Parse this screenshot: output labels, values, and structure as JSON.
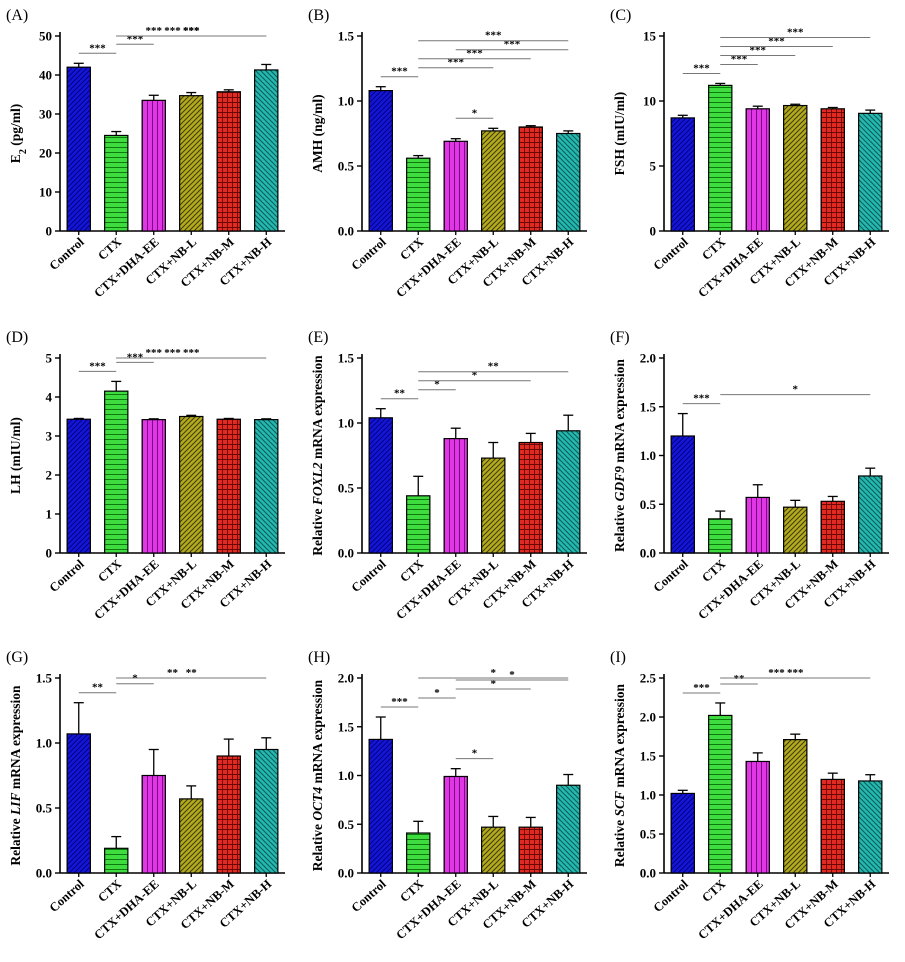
{
  "colors": {
    "bars": [
      "#1515d6",
      "#3fdc3f",
      "#e036e6",
      "#b3aa1e",
      "#e02a22",
      "#23b8b0"
    ],
    "axis": "#000000",
    "sigline": "#777777"
  },
  "chart_data": [
    {
      "id": "A",
      "panel_label": "(A)",
      "type": "bar",
      "ylabel": [
        "E",
        "2",
        " (pg/ml)"
      ],
      "categories": [
        "Control",
        "CTX",
        "CTX+DHA-EE",
        "CTX+NB-L",
        "CTX+NB-M",
        "CTX+NB-H"
      ],
      "values": [
        42,
        24.5,
        33.5,
        34.7,
        35.7,
        41.3
      ],
      "errors": [
        1.0,
        1.0,
        1.3,
        0.8,
        0.5,
        1.4
      ],
      "ylim": [
        0,
        50
      ],
      "ytick_labels": [
        "0",
        "10",
        "20",
        "30",
        "40",
        "50"
      ],
      "significance": [
        {
          "from": 0,
          "to": 1,
          "label": "***"
        },
        {
          "from": 1,
          "to": 2,
          "label": "***"
        },
        {
          "from": 1,
          "to": 3,
          "label": "***"
        },
        {
          "from": 1,
          "to": 4,
          "label": "***"
        },
        {
          "from": 1,
          "to": 5,
          "label": "***"
        },
        {
          "from": 1,
          "to": 5,
          "label": "***"
        }
      ]
    },
    {
      "id": "B",
      "panel_label": "(B)",
      "type": "bar",
      "ylabel": [
        "AMH (ng/ml)"
      ],
      "categories": [
        "Control",
        "CTX",
        "CTX+DHA-EE",
        "CTX+NB-L",
        "CTX+NB-M",
        "CTX+NB-H"
      ],
      "values": [
        1.08,
        0.56,
        0.69,
        0.77,
        0.8,
        0.75
      ],
      "errors": [
        0.03,
        0.02,
        0.02,
        0.02,
        0.01,
        0.02
      ],
      "ylim": [
        0,
        1.5
      ],
      "ytick_labels": [
        "0.0",
        "0.5",
        "1.0",
        "1.5"
      ],
      "significance": [
        {
          "from": 0,
          "to": 1,
          "label": "***"
        },
        {
          "from": 2,
          "to": 3,
          "label": "*"
        },
        {
          "from": 1,
          "to": 3,
          "label": "***"
        },
        {
          "from": 1,
          "to": 4,
          "label": "***"
        },
        {
          "from": 1,
          "to": 5,
          "label": "***"
        },
        {
          "from": 2,
          "to": 5,
          "label": "***"
        }
      ]
    },
    {
      "id": "C",
      "panel_label": "(C)",
      "type": "bar",
      "ylabel": [
        "FSH (mIU/ml)"
      ],
      "categories": [
        "Control",
        "CTX",
        "CTX+DHA-EE",
        "CTX+NB-L",
        "CTX+NB-M",
        "CTX+NB-H"
      ],
      "values": [
        8.7,
        11.2,
        9.4,
        9.65,
        9.4,
        9.05
      ],
      "errors": [
        0.2,
        0.15,
        0.2,
        0.1,
        0.1,
        0.25
      ],
      "ylim": [
        0,
        15
      ],
      "ytick_labels": [
        "0",
        "5",
        "10",
        "15"
      ],
      "significance": [
        {
          "from": 0,
          "to": 1,
          "label": "***"
        },
        {
          "from": 1,
          "to": 2,
          "label": "***"
        },
        {
          "from": 1,
          "to": 3,
          "label": "***"
        },
        {
          "from": 1,
          "to": 4,
          "label": "***"
        },
        {
          "from": 1,
          "to": 5,
          "label": "***"
        }
      ]
    },
    {
      "id": "D",
      "panel_label": "(D)",
      "type": "bar",
      "ylabel": [
        "LH (mIU/ml)"
      ],
      "categories": [
        "Control",
        "CTX",
        "CTX+DHA-EE",
        "CTX+NB-L",
        "CTX+NB-M",
        "CTX+NB-H"
      ],
      "values": [
        3.43,
        4.15,
        3.42,
        3.5,
        3.43,
        3.42
      ],
      "errors": [
        0.02,
        0.25,
        0.02,
        0.03,
        0.02,
        0.02
      ],
      "ylim": [
        0,
        5
      ],
      "ytick_labels": [
        "0",
        "1",
        "2",
        "3",
        "4",
        "5"
      ],
      "significance": [
        {
          "from": 0,
          "to": 1,
          "label": "***"
        },
        {
          "from": 1,
          "to": 2,
          "label": "***"
        },
        {
          "from": 1,
          "to": 3,
          "label": "***"
        },
        {
          "from": 1,
          "to": 4,
          "label": "***"
        },
        {
          "from": 1,
          "to": 5,
          "label": "***"
        }
      ]
    },
    {
      "id": "E",
      "panel_label": "(E)",
      "type": "bar",
      "ylabel": [
        "Relative ",
        "FOXL2",
        " mRNA expression"
      ],
      "categories": [
        "Control",
        "CTX",
        "CTX+DHA-EE",
        "CTX+NB-L",
        "CTX+NB-M",
        "CTX+NB-H"
      ],
      "values": [
        1.04,
        0.44,
        0.88,
        0.73,
        0.85,
        0.94
      ],
      "errors": [
        0.07,
        0.15,
        0.08,
        0.12,
        0.07,
        0.12
      ],
      "ylim": [
        0,
        1.5
      ],
      "ytick_labels": [
        "0.0",
        "0.5",
        "1.0",
        "1.5"
      ],
      "significance": [
        {
          "from": 0,
          "to": 1,
          "label": "**"
        },
        {
          "from": 1,
          "to": 2,
          "label": "*"
        },
        {
          "from": 1,
          "to": 4,
          "label": "*"
        },
        {
          "from": 1,
          "to": 5,
          "label": "**"
        }
      ]
    },
    {
      "id": "F",
      "panel_label": "(F)",
      "type": "bar",
      "ylabel": [
        "Relative ",
        "GDF9",
        " mRNA expression"
      ],
      "categories": [
        "Control",
        "CTX",
        "CTX+DHA-EE",
        "CTX+NB-L",
        "CTX+NB-M",
        "CTX+NB-H"
      ],
      "values": [
        1.2,
        0.35,
        0.57,
        0.47,
        0.53,
        0.79
      ],
      "errors": [
        0.23,
        0.08,
        0.13,
        0.07,
        0.05,
        0.08
      ],
      "ylim": [
        0,
        2.0
      ],
      "ytick_labels": [
        "0.0",
        "0.5",
        "1.0",
        "1.5",
        "2.0"
      ],
      "significance": [
        {
          "from": 0,
          "to": 1,
          "label": "***"
        },
        {
          "from": 1,
          "to": 5,
          "label": "*"
        }
      ]
    },
    {
      "id": "G",
      "panel_label": "(G)",
      "type": "bar",
      "ylabel": [
        "Relative ",
        "LIF",
        " mRNA expression"
      ],
      "categories": [
        "Control",
        "CTX",
        "CTX+DHA-EE",
        "CTX+NB-L",
        "CTX+NB-M",
        "CTX+NB-H"
      ],
      "values": [
        1.07,
        0.19,
        0.75,
        0.57,
        0.9,
        0.95
      ],
      "errors": [
        0.24,
        0.09,
        0.2,
        0.1,
        0.13,
        0.09
      ],
      "ylim": [
        0,
        1.5
      ],
      "ytick_labels": [
        "0.0",
        "0.5",
        "1.0",
        "1.5"
      ],
      "significance": [
        {
          "from": 0,
          "to": 1,
          "label": "**"
        },
        {
          "from": 1,
          "to": 2,
          "label": "*"
        },
        {
          "from": 1,
          "to": 4,
          "label": "**"
        },
        {
          "from": 1,
          "to": 5,
          "label": "**"
        }
      ]
    },
    {
      "id": "H",
      "panel_label": "(H)",
      "type": "bar",
      "ylabel": [
        "Relative ",
        "OCT4",
        " mRNA expression"
      ],
      "categories": [
        "Control",
        "CTX",
        "CTX+DHA-EE",
        "CTX+NB-L",
        "CTX+NB-M",
        "CTX+NB-H"
      ],
      "values": [
        1.37,
        0.41,
        0.99,
        0.47,
        0.47,
        0.9
      ],
      "errors": [
        0.23,
        0.12,
        0.08,
        0.11,
        0.1,
        0.11
      ],
      "ylim": [
        0,
        2.0
      ],
      "ytick_labels": [
        "0.0",
        "0.5",
        "1.0",
        "1.5",
        "2.0"
      ],
      "significance": [
        {
          "from": 0,
          "to": 1,
          "label": "***"
        },
        {
          "from": 2,
          "to": 3,
          "label": "*"
        },
        {
          "from": 2,
          "to": 4,
          "label": "*"
        },
        {
          "from": 2,
          "to": 5,
          "label": "*"
        },
        {
          "from": 1,
          "to": 2,
          "label": "*"
        },
        {
          "from": 1,
          "to": 5,
          "label": "*"
        }
      ]
    },
    {
      "id": "I",
      "panel_label": "(I)",
      "type": "bar",
      "ylabel": [
        "Relative ",
        "SCF",
        " mRNA expression"
      ],
      "categories": [
        "Control",
        "CTX",
        "CTX+DHA-EE",
        "CTX+NB-L",
        "CTX+NB-M",
        "CTX+NB-H"
      ],
      "values": [
        1.02,
        2.02,
        1.43,
        1.71,
        1.2,
        1.18
      ],
      "errors": [
        0.04,
        0.16,
        0.11,
        0.07,
        0.08,
        0.08
      ],
      "ylim": [
        0,
        2.5
      ],
      "ytick_labels": [
        "0.0",
        "0.5",
        "1.0",
        "1.5",
        "2.0",
        "2.5"
      ],
      "significance": [
        {
          "from": 0,
          "to": 1,
          "label": "***"
        },
        {
          "from": 1,
          "to": 2,
          "label": "**"
        },
        {
          "from": 1,
          "to": 4,
          "label": "***"
        },
        {
          "from": 1,
          "to": 5,
          "label": "***"
        }
      ]
    }
  ]
}
